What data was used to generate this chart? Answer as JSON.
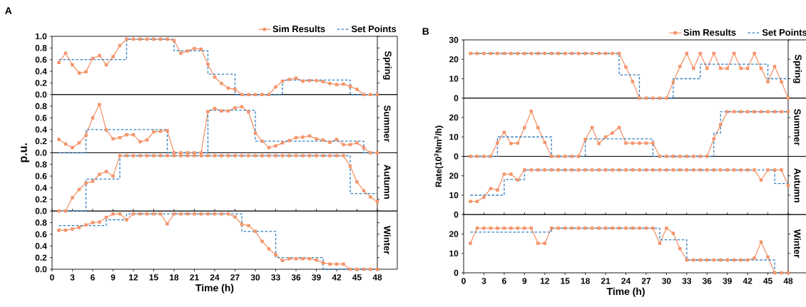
{
  "chart_data": [
    {
      "type": "line",
      "annotations": [
        "A",
        "Spring"
      ],
      "legend": "top right",
      "xlim": [
        0,
        48
      ],
      "ylim": [
        0,
        1
      ],
      "tick_labels": "y",
      "yticks": [
        {
          "value": 0,
          "label": "0.0"
        },
        {
          "value": 0.2,
          "label": "0.2"
        },
        {
          "value": 0.4,
          "label": "0.4"
        },
        {
          "value": 0.6,
          "label": "0.6"
        },
        {
          "value": 0.8,
          "label": "0.8"
        },
        {
          "value": 1,
          "label": "1.0"
        }
      ],
      "x": [
        1,
        2,
        3,
        4,
        5,
        6,
        7,
        8,
        9,
        10,
        11,
        12,
        13,
        14,
        15,
        16,
        17,
        18,
        19,
        20,
        21,
        22,
        23,
        24,
        25,
        26,
        27,
        28,
        29,
        30,
        31,
        32,
        33,
        34,
        35,
        36,
        37,
        38,
        39,
        40,
        41,
        42,
        43,
        44,
        45,
        46,
        47,
        48
      ],
      "series": [
        {
          "name": "Sim Results",
          "type": "line",
          "color": "#f4956b",
          "marker": "square",
          "line_style": "solid",
          "values": [
            0.55,
            0.71,
            0.51,
            0.37,
            0.39,
            0.62,
            0.67,
            0.51,
            0.65,
            0.84,
            0.95,
            0.95,
            0.95,
            0.95,
            0.95,
            0.95,
            0.95,
            0.93,
            0.71,
            0.75,
            0.79,
            0.78,
            0.52,
            0.3,
            0.19,
            0.11,
            0.09,
            0,
            0,
            0,
            0,
            0,
            0.13,
            0.23,
            0.26,
            0.28,
            0.23,
            0.24,
            0.24,
            0.22,
            0.19,
            0.17,
            0.18,
            0.14,
            0.09,
            0,
            0,
            0
          ]
        },
        {
          "name": "Set Points",
          "type": "step",
          "color": "#2f7fc1",
          "marker": "none",
          "line_style": "dashed",
          "x": [
            1,
            11,
            18,
            23,
            27,
            34,
            44,
            48
          ],
          "values": [
            0.6,
            0.95,
            0.75,
            0.35,
            0,
            0.25,
            0,
            0
          ]
        }
      ]
    },
    {
      "type": "line",
      "annotations": [
        "Summer"
      ],
      "ylabel": "p.u.",
      "xlim": [
        0,
        48
      ],
      "ylim": [
        0,
        1
      ],
      "tick_labels": "y",
      "yticks": [
        {
          "value": 0,
          "label": "0.0"
        },
        {
          "value": 0.2,
          "label": "0.2"
        },
        {
          "value": 0.4,
          "label": "0.4"
        },
        {
          "value": 0.6,
          "label": "0.6"
        },
        {
          "value": 0.8,
          "label": "0.8"
        }
      ],
      "x": [
        1,
        2,
        3,
        4,
        5,
        6,
        7,
        8,
        9,
        10,
        11,
        12,
        13,
        14,
        15,
        16,
        17,
        18,
        19,
        20,
        21,
        22,
        23,
        24,
        25,
        26,
        27,
        28,
        29,
        30,
        31,
        32,
        33,
        34,
        35,
        36,
        37,
        38,
        39,
        40,
        41,
        42,
        43,
        44,
        45,
        46,
        47,
        48
      ],
      "series": [
        {
          "type": "line",
          "color": "#f4956b",
          "marker": "square",
          "line_style": "solid",
          "values": [
            0.23,
            0.15,
            0.09,
            0.17,
            0.3,
            0.6,
            0.83,
            0.39,
            0.24,
            0.26,
            0.31,
            0.31,
            0.19,
            0.22,
            0.36,
            0.37,
            0.38,
            0,
            0,
            0,
            0,
            0,
            0.71,
            0.76,
            0.72,
            0.72,
            0.77,
            0.79,
            0.7,
            0.34,
            0.2,
            0.09,
            0.12,
            0.17,
            0.21,
            0.26,
            0.27,
            0.29,
            0.24,
            0.22,
            0.18,
            0.23,
            0.14,
            0.14,
            0.17,
            0.09,
            0,
            0
          ]
        },
        {
          "type": "step",
          "color": "#2f7fc1",
          "marker": "none",
          "line_style": "dashed",
          "x": [
            1,
            5,
            17,
            23,
            30,
            46,
            48
          ],
          "values": [
            0,
            0.4,
            0,
            0.73,
            0.2,
            0,
            0
          ]
        }
      ]
    },
    {
      "type": "line",
      "annotations": [
        "Autumn"
      ],
      "xlim": [
        0,
        48
      ],
      "ylim": [
        0,
        1
      ],
      "tick_labels": "y",
      "yticks": [
        {
          "value": 0,
          "label": "0.0"
        },
        {
          "value": 0.2,
          "label": "0.2"
        },
        {
          "value": 0.4,
          "label": "0.4"
        },
        {
          "value": 0.6,
          "label": "0.6"
        },
        {
          "value": 0.8,
          "label": "0.8"
        }
      ],
      "x": [
        1,
        2,
        3,
        4,
        5,
        6,
        7,
        8,
        9,
        10,
        11,
        12,
        13,
        14,
        15,
        16,
        17,
        18,
        19,
        20,
        21,
        22,
        23,
        24,
        25,
        26,
        27,
        28,
        29,
        30,
        31,
        32,
        33,
        34,
        35,
        36,
        37,
        38,
        39,
        40,
        41,
        42,
        43,
        44,
        45,
        46,
        47,
        48
      ],
      "series": [
        {
          "type": "line",
          "color": "#f4956b",
          "marker": "square",
          "line_style": "solid",
          "values": [
            0,
            0,
            0.23,
            0.37,
            0.48,
            0.51,
            0.63,
            0.68,
            0.6,
            0.95,
            0.95,
            0.95,
            0.95,
            0.95,
            0.95,
            0.95,
            0.95,
            0.95,
            0.95,
            0.95,
            0.95,
            0.95,
            0.95,
            0.95,
            0.95,
            0.95,
            0.95,
            0.95,
            0.95,
            0.95,
            0.95,
            0.95,
            0.95,
            0.95,
            0.95,
            0.95,
            0.95,
            0.95,
            0.95,
            0.95,
            0.95,
            0.95,
            0.95,
            0.77,
            0.5,
            0.35,
            0.24,
            0.16
          ]
        },
        {
          "type": "step",
          "color": "#2f7fc1",
          "marker": "none",
          "line_style": "dashed",
          "x": [
            1,
            5,
            10,
            44,
            48
          ],
          "values": [
            0,
            0.55,
            0.95,
            0.3,
            0.3
          ]
        }
      ]
    },
    {
      "type": "line",
      "annotations": [
        "Winter"
      ],
      "xlabel": "Time (h)",
      "xlim": [
        0,
        48
      ],
      "ylim": [
        0,
        1
      ],
      "xticks": [
        0,
        3,
        6,
        9,
        12,
        15,
        18,
        21,
        24,
        27,
        30,
        33,
        36,
        39,
        42,
        45,
        48
      ],
      "yticks": [
        {
          "value": 0,
          "label": "0.0"
        },
        {
          "value": 0.2,
          "label": "0.2"
        },
        {
          "value": 0.4,
          "label": "0.4"
        },
        {
          "value": 0.6,
          "label": "0.6"
        },
        {
          "value": 0.8,
          "label": "0.8"
        }
      ],
      "x": [
        1,
        2,
        3,
        4,
        5,
        6,
        7,
        8,
        9,
        10,
        11,
        12,
        13,
        14,
        15,
        16,
        17,
        18,
        19,
        20,
        21,
        22,
        23,
        24,
        25,
        26,
        27,
        28,
        29,
        30,
        31,
        32,
        33,
        34,
        35,
        36,
        37,
        38,
        39,
        40,
        41,
        42,
        43,
        44,
        45,
        46,
        47,
        48
      ],
      "series": [
        {
          "type": "line",
          "color": "#f4956b",
          "marker": "square",
          "line_style": "solid",
          "values": [
            0.67,
            0.67,
            0.69,
            0.72,
            0.76,
            0.8,
            0.81,
            0.89,
            0.95,
            0.95,
            0.85,
            0.95,
            0.95,
            0.95,
            0.95,
            0.95,
            0.78,
            0.95,
            0.95,
            0.95,
            0.95,
            0.95,
            0.95,
            0.95,
            0.95,
            0.95,
            0.9,
            0.77,
            0.75,
            0.65,
            0.48,
            0.35,
            0.25,
            0.15,
            0.18,
            0.18,
            0.18,
            0.18,
            0.16,
            0.11,
            0.09,
            0.09,
            0.09,
            0,
            0,
            0,
            0,
            0
          ]
        },
        {
          "type": "step",
          "color": "#2f7fc1",
          "marker": "none",
          "line_style": "dashed",
          "x": [
            1,
            8,
            11,
            28,
            33,
            40,
            48
          ],
          "values": [
            0.75,
            0.85,
            0.95,
            0.65,
            0.2,
            0,
            0
          ]
        }
      ]
    },
    {
      "type": "line",
      "annotations": [
        "B",
        "Spring"
      ],
      "legend": "top right",
      "xlim": [
        0,
        48
      ],
      "ylim": [
        0,
        30
      ],
      "tick_labels": "y",
      "yticks": [
        0,
        10,
        20,
        30
      ],
      "x": [
        1,
        2,
        3,
        4,
        5,
        6,
        7,
        8,
        9,
        10,
        11,
        12,
        13,
        14,
        15,
        16,
        17,
        18,
        19,
        20,
        21,
        22,
        23,
        24,
        25,
        26,
        27,
        28,
        29,
        30,
        31,
        32,
        33,
        34,
        35,
        36,
        37,
        38,
        39,
        40,
        41,
        42,
        43,
        44,
        45,
        46,
        47,
        48
      ],
      "series": [
        {
          "name": "Sim Results",
          "type": "line",
          "color": "#f4956b",
          "marker": "square",
          "line_style": "solid",
          "values": [
            23,
            23,
            23,
            23,
            23,
            23,
            23,
            23,
            23,
            23,
            23,
            23,
            23,
            23,
            23,
            23,
            23,
            23,
            23,
            23,
            23,
            23,
            23,
            16,
            8.5,
            0,
            0,
            0,
            0,
            0,
            8.2,
            16.3,
            23,
            15.3,
            23,
            15.3,
            23,
            15.3,
            15.3,
            23,
            15.3,
            15.3,
            23,
            15.3,
            8.4,
            16.3,
            8.4,
            0
          ]
        },
        {
          "name": "Set Points",
          "type": "step",
          "color": "#2f7fc1",
          "marker": "none",
          "line_style": "dashed",
          "x": [
            1,
            23,
            26,
            31,
            35,
            45,
            48
          ],
          "values": [
            23,
            12,
            0,
            10,
            17.5,
            10,
            10
          ]
        }
      ]
    },
    {
      "type": "line",
      "annotations": [
        "Summer"
      ],
      "ylabel": "Rate(10$^{3}$Nm$^{3}$/h)",
      "xlim": [
        0,
        48
      ],
      "ylim": [
        0,
        30
      ],
      "tick_labels": "y",
      "yticks": [
        0,
        10,
        20
      ],
      "x": [
        1,
        2,
        3,
        4,
        5,
        6,
        7,
        8,
        9,
        10,
        11,
        12,
        13,
        14,
        15,
        16,
        17,
        18,
        19,
        20,
        21,
        22,
        23,
        24,
        25,
        26,
        27,
        28,
        29,
        30,
        31,
        32,
        33,
        34,
        35,
        36,
        37,
        38,
        39,
        40,
        41,
        42,
        43,
        44,
        45,
        46,
        47,
        48
      ],
      "series": [
        {
          "type": "line",
          "color": "#f4956b",
          "marker": "square",
          "line_style": "solid",
          "values": [
            0,
            0,
            0,
            0,
            7,
            12.4,
            6.6,
            6.8,
            14.8,
            23.2,
            14.8,
            7.2,
            0,
            0,
            0,
            0,
            0,
            8.7,
            14.9,
            6.6,
            10,
            12,
            14.9,
            6.8,
            6.8,
            6.8,
            6.8,
            6.8,
            0,
            0,
            0,
            0,
            0,
            0,
            0,
            0,
            9,
            16.2,
            23,
            23,
            23,
            23,
            23,
            23,
            23,
            23,
            23,
            23
          ]
        },
        {
          "type": "step",
          "color": "#2f7fc1",
          "marker": "none",
          "line_style": "dashed",
          "x": [
            1,
            5,
            13,
            18,
            28,
            37,
            38,
            48
          ],
          "values": [
            0,
            10,
            0,
            9,
            0,
            12,
            23,
            23
          ]
        }
      ]
    },
    {
      "type": "line",
      "annotations": [
        "Autumn"
      ],
      "xlim": [
        0,
        48
      ],
      "ylim": [
        0,
        30
      ],
      "tick_labels": "y",
      "yticks": [
        0,
        10,
        20
      ],
      "x": [
        1,
        2,
        3,
        4,
        5,
        6,
        7,
        8,
        9,
        10,
        11,
        12,
        13,
        14,
        15,
        16,
        17,
        18,
        19,
        20,
        21,
        22,
        23,
        24,
        25,
        26,
        27,
        28,
        29,
        30,
        31,
        32,
        33,
        34,
        35,
        36,
        37,
        38,
        39,
        40,
        41,
        42,
        43,
        44,
        45,
        46,
        47,
        48
      ],
      "series": [
        {
          "type": "line",
          "color": "#f4956b",
          "marker": "square",
          "line_style": "solid",
          "values": [
            6.8,
            6.8,
            9,
            13.4,
            12.7,
            20.8,
            20.8,
            17.8,
            23,
            23,
            23,
            23,
            23,
            23,
            23,
            23,
            23,
            23,
            23,
            23,
            23,
            23,
            23,
            23,
            23,
            23,
            23,
            23,
            23,
            23,
            23,
            23,
            23,
            23,
            23,
            23,
            23,
            23,
            23,
            23,
            23,
            23,
            23,
            17.8,
            23,
            23,
            23,
            15
          ]
        },
        {
          "type": "step",
          "color": "#2f7fc1",
          "marker": "none",
          "line_style": "dashed",
          "x": [
            1,
            6,
            9,
            46,
            48
          ],
          "values": [
            10,
            18,
            23,
            16,
            16
          ]
        }
      ]
    },
    {
      "type": "line",
      "annotations": [
        "Winter"
      ],
      "xlabel": "Time (h)",
      "xlim": [
        0,
        48
      ],
      "ylim": [
        0,
        30
      ],
      "xticks": [
        0,
        3,
        6,
        9,
        12,
        15,
        18,
        21,
        24,
        27,
        30,
        33,
        36,
        39,
        42,
        45,
        48
      ],
      "yticks": [
        0,
        10,
        20
      ],
      "x": [
        1,
        2,
        3,
        4,
        5,
        6,
        7,
        8,
        9,
        10,
        11,
        12,
        13,
        14,
        15,
        16,
        17,
        18,
        19,
        20,
        21,
        22,
        23,
        24,
        25,
        26,
        27,
        28,
        29,
        30,
        31,
        32,
        33,
        34,
        35,
        36,
        37,
        38,
        39,
        40,
        41,
        42,
        43,
        44,
        45,
        46,
        47,
        48
      ],
      "series": [
        {
          "type": "line",
          "color": "#f4956b",
          "marker": "square",
          "line_style": "solid",
          "values": [
            15.2,
            23,
            23,
            23,
            23,
            23,
            23,
            23,
            23,
            23,
            15.2,
            15.2,
            23,
            23,
            23,
            23,
            23,
            23,
            23,
            23,
            23,
            23,
            23,
            23,
            23,
            23,
            23,
            23,
            15.2,
            23,
            20.4,
            12.4,
            6.6,
            6.6,
            6.6,
            6.6,
            6.6,
            6.6,
            6.6,
            6.6,
            6.6,
            6.6,
            7.6,
            15.9,
            8.2,
            0,
            0,
            0
          ]
        },
        {
          "type": "step",
          "color": "#2f7fc1",
          "marker": "none",
          "line_style": "dashed",
          "x": [
            1,
            13,
            29,
            33,
            46,
            48
          ],
          "values": [
            21,
            23,
            17,
            6.6,
            0,
            0
          ]
        }
      ]
    }
  ]
}
